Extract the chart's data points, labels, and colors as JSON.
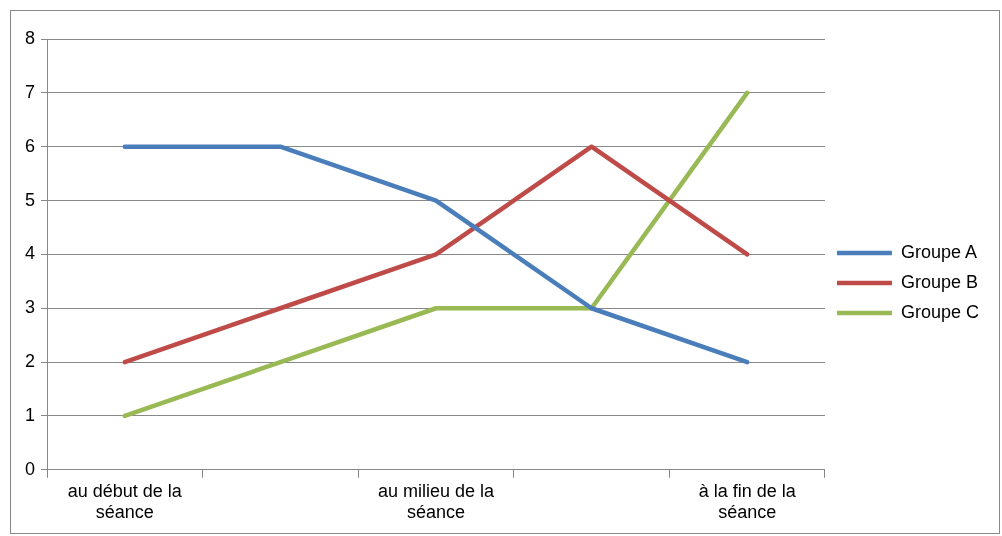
{
  "chart_data": {
    "type": "line",
    "categories": [
      "au début de la séance",
      null,
      "au milieu de la séance",
      null,
      "à la fin de la séance"
    ],
    "series": [
      {
        "name": "Groupe A",
        "color": "#4a7ebb",
        "values": [
          6,
          6,
          5,
          3,
          2
        ]
      },
      {
        "name": "Groupe B",
        "color": "#be4b48",
        "values": [
          2,
          3,
          4,
          6,
          4
        ]
      },
      {
        "name": "Groupe C",
        "color": "#98b954",
        "values": [
          1,
          2,
          3,
          3,
          7
        ]
      }
    ],
    "ylim": [
      0,
      8
    ],
    "yticks": [
      0,
      1,
      2,
      3,
      4,
      5,
      6,
      7,
      8
    ],
    "grid": "y",
    "legend": "right",
    "marker": "none",
    "line_style": "solid"
  }
}
